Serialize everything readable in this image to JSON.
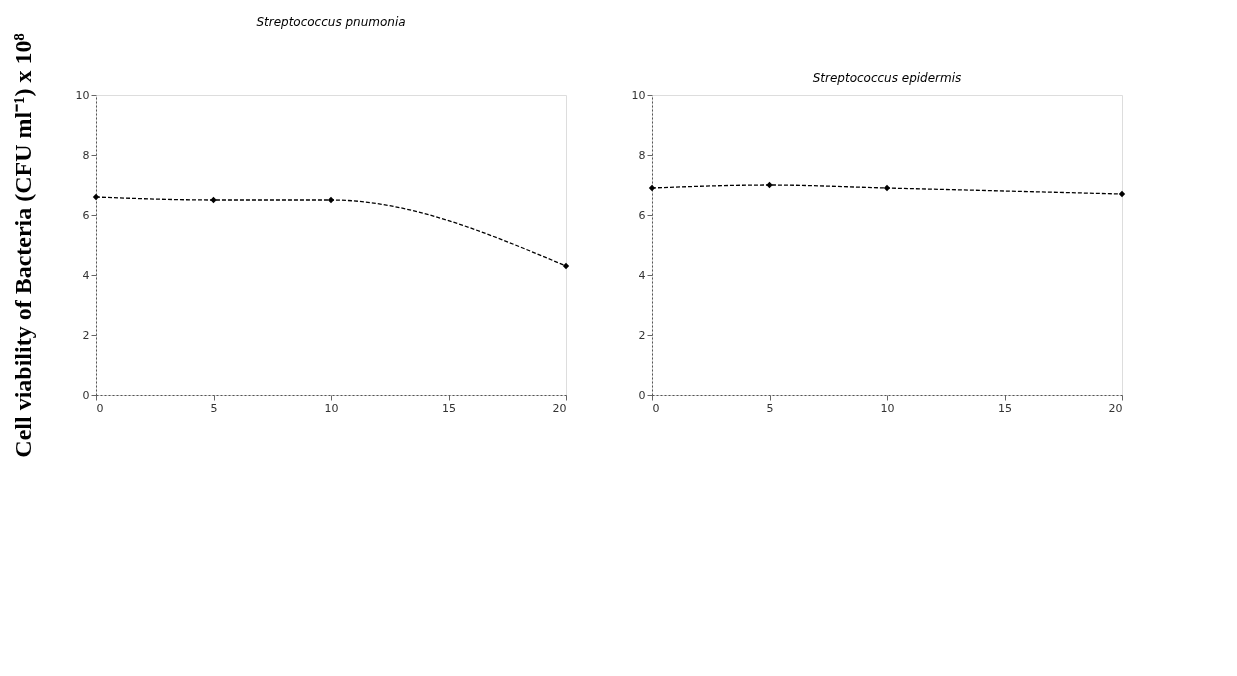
{
  "chart_data": [
    {
      "type": "line",
      "title": "Streptococcus pnumonia",
      "ylabel": "Cell viability of Bacteria (CFU ml⁻¹) x 10⁸",
      "x": [
        0,
        5,
        10,
        20
      ],
      "series": [
        {
          "color": "#000000",
          "values": [
            6.6,
            6.5,
            6.5,
            4.3
          ]
        }
      ],
      "xlim": [
        0,
        20
      ],
      "xticks": [
        0,
        5,
        10,
        15,
        20
      ],
      "ylim": [
        0,
        10
      ],
      "yticks": [
        0,
        2,
        4,
        6,
        8,
        10
      ],
      "marker": "diamond",
      "line_style": "dashed",
      "grid": false
    },
    {
      "type": "line",
      "title": "Streptococcus epidermis",
      "x": [
        0,
        5,
        10,
        20
      ],
      "series": [
        {
          "color": "#000000",
          "values": [
            6.9,
            7.0,
            6.9,
            6.7
          ]
        }
      ],
      "xlim": [
        0,
        20
      ],
      "xticks": [
        0,
        5,
        10,
        15,
        20
      ],
      "ylim": [
        0,
        10
      ],
      "yticks": [
        0,
        2,
        4,
        6,
        8,
        10
      ],
      "marker": "diamond",
      "line_style": "dashed",
      "grid": false
    }
  ]
}
